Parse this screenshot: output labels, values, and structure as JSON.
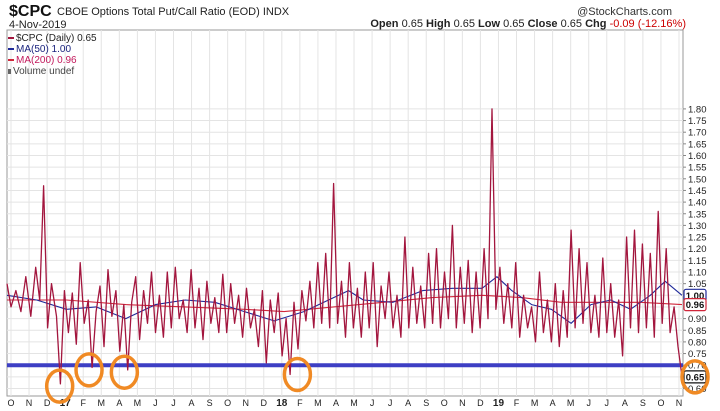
{
  "header": {
    "symbol": "$CPC",
    "name": "CBOE Options Total Put/Call Ratio (EOD)",
    "exchange": "INDX",
    "date": "4-Nov-2019",
    "brand": "@StockCharts.com",
    "open_label": "Open",
    "open": "0.65",
    "high_label": "High",
    "high": "0.65",
    "low_label": "Low",
    "low": "0.65",
    "close_label": "Close",
    "close": "0.65",
    "chg_label": "Chg",
    "chg": "-0.09 (-12.16%)"
  },
  "legend": {
    "price": "$CPC (Daily) 0.65",
    "ma50": "MA(50) 1.00",
    "ma200": "MA(200) 0.96",
    "volume": "Volume undef"
  },
  "colors": {
    "price": "#a3163e",
    "ma50": "#1f2a9a",
    "ma200": "#d0263a",
    "level_line": "#3d3fc4",
    "highlight": "#f08a24",
    "grid": "#e4e4e4"
  },
  "chart_data": {
    "type": "line",
    "scale": "linear",
    "ylim": [
      0.6,
      1.82
    ],
    "y_ticks": [
      "0.60",
      "0.65",
      "0.70",
      "0.75",
      "0.80",
      "0.85",
      "0.90",
      "0.95",
      "1.00",
      "1.05",
      "1.10",
      "1.15",
      "1.20",
      "1.25",
      "1.30",
      "1.35",
      "1.40",
      "1.45",
      "1.50",
      "1.55",
      "1.60",
      "1.65",
      "1.70",
      "1.75",
      "1.80"
    ],
    "x_ticks": [
      "O",
      "N",
      "D",
      "17",
      "F",
      "M",
      "A",
      "M",
      "J",
      "J",
      "A",
      "S",
      "O",
      "N",
      "D",
      "18",
      "F",
      "M",
      "A",
      "M",
      "J",
      "J",
      "A",
      "S",
      "O",
      "N",
      "D",
      "19",
      "F",
      "M",
      "A",
      "M",
      "J",
      "J",
      "A",
      "S",
      "O",
      "N"
    ],
    "x_range": [
      "2016-10-01",
      "2019-11-04"
    ],
    "grid": true,
    "horizontal_line": 0.7,
    "last_value": 0.65,
    "last_value_label": "0.65",
    "ma50_label": "1.00",
    "ma200_label": "0.96",
    "highlight_circles": [
      {
        "x": "2016-12-28",
        "y": 0.61
      },
      {
        "x": "2017-02-15",
        "y": 0.68
      },
      {
        "x": "2017-04-15",
        "y": 0.67
      },
      {
        "x": "2018-01-29",
        "y": 0.66
      },
      {
        "x": "2019-11-04",
        "y": 0.65
      }
    ],
    "series": [
      {
        "values": [
          [
            0,
            1.05
          ],
          [
            4,
            0.95
          ],
          [
            9,
            1.02
          ],
          [
            14,
            0.93
          ],
          [
            19,
            1.08
          ],
          [
            24,
            0.91
          ],
          [
            29,
            1.12
          ],
          [
            33,
            0.98
          ],
          [
            37,
            1.47
          ],
          [
            41,
            0.86
          ],
          [
            45,
            1.05
          ],
          [
            50,
            0.91
          ],
          [
            54,
            0.62
          ],
          [
            58,
            1.02
          ],
          [
            62,
            0.84
          ],
          [
            66,
            1.01
          ],
          [
            70,
            0.79
          ],
          [
            74,
            1.14
          ],
          [
            78,
            0.88
          ],
          [
            82,
            0.98
          ],
          [
            86,
            0.69
          ],
          [
            90,
            0.93
          ],
          [
            94,
            1.04
          ],
          [
            98,
            0.78
          ],
          [
            102,
            1.11
          ],
          [
            106,
            0.91
          ],
          [
            110,
            1.02
          ],
          [
            114,
            0.76
          ],
          [
            118,
            0.96
          ],
          [
            122,
            0.68
          ],
          [
            126,
            0.97
          ],
          [
            130,
            1.08
          ],
          [
            134,
            0.81
          ],
          [
            138,
            1.02
          ],
          [
            142,
            0.88
          ],
          [
            146,
            1.1
          ],
          [
            150,
            0.84
          ],
          [
            154,
            1.0
          ],
          [
            158,
            0.82
          ],
          [
            162,
            1.1
          ],
          [
            166,
            0.86
          ],
          [
            170,
            1.12
          ],
          [
            174,
            0.9
          ],
          [
            178,
            0.98
          ],
          [
            182,
            0.84
          ],
          [
            186,
            1.11
          ],
          [
            190,
            0.86
          ],
          [
            194,
            1.03
          ],
          [
            198,
            0.81
          ],
          [
            202,
            1.06
          ],
          [
            206,
            0.88
          ],
          [
            210,
            0.99
          ],
          [
            214,
            0.84
          ],
          [
            218,
            1.09
          ],
          [
            222,
            0.84
          ],
          [
            226,
            1.05
          ],
          [
            230,
            0.88
          ],
          [
            234,
            1.0
          ],
          [
            238,
            0.82
          ],
          [
            242,
            1.03
          ],
          [
            246,
            0.86
          ],
          [
            250,
            0.94
          ],
          [
            254,
            0.78
          ],
          [
            258,
            1.02
          ],
          [
            262,
            0.71
          ],
          [
            266,
            0.98
          ],
          [
            270,
            0.84
          ],
          [
            274,
            1.01
          ],
          [
            278,
            0.74
          ],
          [
            282,
            0.9
          ],
          [
            286,
            0.66
          ],
          [
            290,
            0.97
          ],
          [
            294,
            0.77
          ],
          [
            298,
            1.02
          ],
          [
            302,
            0.89
          ],
          [
            306,
            1.06
          ],
          [
            310,
            0.86
          ],
          [
            314,
            1.14
          ],
          [
            318,
            0.88
          ],
          [
            322,
            1.18
          ],
          [
            326,
            0.86
          ],
          [
            330,
            1.48
          ],
          [
            334,
            0.88
          ],
          [
            338,
            1.06
          ],
          [
            342,
            0.82
          ],
          [
            346,
            1.14
          ],
          [
            350,
            0.86
          ],
          [
            354,
            1.03
          ],
          [
            358,
            0.82
          ],
          [
            362,
            1.1
          ],
          [
            366,
            0.86
          ],
          [
            370,
            1.14
          ],
          [
            374,
            0.78
          ],
          [
            378,
            1.04
          ],
          [
            382,
            0.9
          ],
          [
            386,
            1.1
          ],
          [
            390,
            0.86
          ],
          [
            394,
            1.0
          ],
          [
            398,
            0.82
          ],
          [
            402,
            1.25
          ],
          [
            406,
            0.86
          ],
          [
            410,
            1.12
          ],
          [
            414,
            0.88
          ],
          [
            418,
            1.04
          ],
          [
            422,
            0.86
          ],
          [
            426,
            1.18
          ],
          [
            430,
            0.88
          ],
          [
            434,
            1.2
          ],
          [
            438,
            0.86
          ],
          [
            442,
            1.1
          ],
          [
            446,
            0.9
          ],
          [
            450,
            1.3
          ],
          [
            454,
            0.86
          ],
          [
            458,
            1.12
          ],
          [
            462,
            0.88
          ],
          [
            466,
            1.15
          ],
          [
            470,
            0.84
          ],
          [
            474,
            1.1
          ],
          [
            478,
            0.86
          ],
          [
            482,
            1.2
          ],
          [
            486,
            0.9
          ],
          [
            490,
            1.8
          ],
          [
            494,
            0.94
          ],
          [
            498,
            1.12
          ],
          [
            502,
            0.88
          ],
          [
            506,
            1.05
          ],
          [
            510,
            0.86
          ],
          [
            514,
            1.14
          ],
          [
            518,
            0.82
          ],
          [
            522,
            1.0
          ],
          [
            526,
            0.86
          ],
          [
            530,
            0.95
          ],
          [
            534,
            0.8
          ],
          [
            538,
            1.1
          ],
          [
            542,
            0.84
          ],
          [
            546,
            0.98
          ],
          [
            550,
            0.8
          ],
          [
            554,
            1.05
          ],
          [
            558,
            0.78
          ],
          [
            562,
            1.02
          ],
          [
            566,
            0.82
          ],
          [
            570,
            1.28
          ],
          [
            574,
            0.86
          ],
          [
            578,
            1.2
          ],
          [
            582,
            0.88
          ],
          [
            586,
            1.14
          ],
          [
            590,
            0.84
          ],
          [
            594,
            1.0
          ],
          [
            598,
            0.82
          ],
          [
            602,
            1.16
          ],
          [
            606,
            0.84
          ],
          [
            610,
            1.05
          ],
          [
            614,
            0.82
          ],
          [
            618,
            0.98
          ],
          [
            622,
            0.74
          ],
          [
            626,
            1.25
          ],
          [
            630,
            0.86
          ],
          [
            634,
            1.28
          ],
          [
            638,
            0.84
          ],
          [
            642,
            1.22
          ],
          [
            646,
            0.86
          ],
          [
            650,
            1.18
          ],
          [
            654,
            0.82
          ],
          [
            658,
            1.36
          ],
          [
            662,
            0.88
          ],
          [
            666,
            1.2
          ],
          [
            670,
            0.84
          ],
          [
            674,
            0.95
          ],
          [
            678,
            0.78
          ],
          [
            682,
            0.65
          ]
        ]
      },
      {
        "values": [
          [
            0,
            1.0
          ],
          [
            30,
            0.98
          ],
          [
            60,
            0.94
          ],
          [
            90,
            0.95
          ],
          [
            120,
            0.9
          ],
          [
            150,
            0.96
          ],
          [
            180,
            0.98
          ],
          [
            210,
            0.97
          ],
          [
            240,
            0.93
          ],
          [
            270,
            0.89
          ],
          [
            300,
            0.93
          ],
          [
            330,
            0.99
          ],
          [
            345,
            1.02
          ],
          [
            360,
            0.98
          ],
          [
            390,
            0.97
          ],
          [
            420,
            1.02
          ],
          [
            450,
            1.03
          ],
          [
            480,
            1.03
          ],
          [
            495,
            1.08
          ],
          [
            510,
            1.02
          ],
          [
            530,
            0.96
          ],
          [
            550,
            0.94
          ],
          [
            570,
            0.88
          ],
          [
            590,
            0.96
          ],
          [
            610,
            0.98
          ],
          [
            630,
            0.94
          ],
          [
            650,
            1.0
          ],
          [
            665,
            1.06
          ],
          [
            682,
            1.0
          ]
        ]
      },
      {
        "values": [
          [
            0,
            0.98
          ],
          [
            60,
            0.98
          ],
          [
            120,
            0.96
          ],
          [
            180,
            0.95
          ],
          [
            240,
            0.94
          ],
          [
            280,
            0.93
          ],
          [
            330,
            0.95
          ],
          [
            380,
            0.97
          ],
          [
            430,
            0.99
          ],
          [
            480,
            1.0
          ],
          [
            520,
            0.99
          ],
          [
            560,
            0.97
          ],
          [
            600,
            0.97
          ],
          [
            640,
            0.97
          ],
          [
            682,
            0.96
          ]
        ]
      }
    ]
  }
}
